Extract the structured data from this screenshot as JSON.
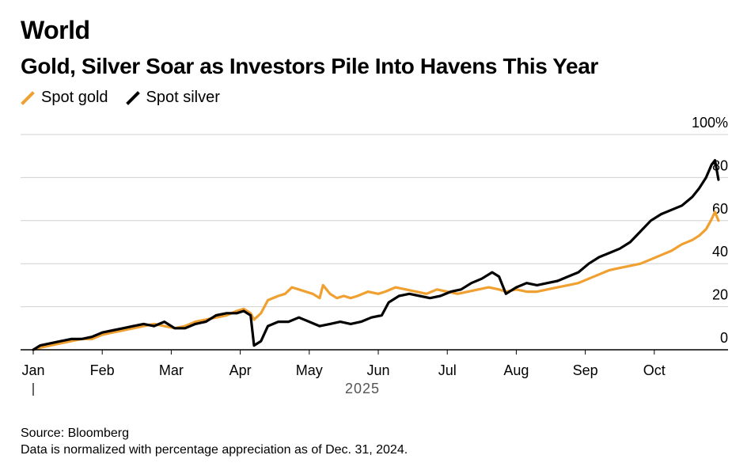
{
  "header": {
    "section": "World",
    "title": "Gold, Silver Soar as Investors Pile Into Havens This Year"
  },
  "legend": [
    {
      "name": "Spot gold",
      "color": "#f0a030"
    },
    {
      "name": "Spot silver",
      "color": "#000000"
    }
  ],
  "footer": {
    "source": "Source: Bloomberg",
    "note": "Data is normalized with percentage appreciation as of Dec. 31, 2024."
  },
  "chart_data": {
    "type": "line",
    "x_unit": "month_index_2025",
    "xlim": [
      0,
      9.6
    ],
    "ylim": [
      0,
      100
    ],
    "y_ticks": [
      0,
      20,
      40,
      60,
      80,
      100
    ],
    "y_tick_labels": [
      "0",
      "20",
      "40",
      "60",
      "80",
      "100%"
    ],
    "x_ticks": [
      0,
      1,
      2,
      3,
      4,
      5,
      6,
      7,
      8,
      9
    ],
    "x_tick_labels": [
      "Jan",
      "Feb",
      "Mar",
      "Apr",
      "May",
      "Jun",
      "Jul",
      "Aug",
      "Sep",
      "Oct"
    ],
    "year_label": "2025",
    "grid": true,
    "legend_position": "top-left",
    "series": [
      {
        "name": "Spot gold",
        "color": "#f0a030",
        "points": [
          [
            0.0,
            0
          ],
          [
            0.1,
            1
          ],
          [
            0.25,
            2
          ],
          [
            0.4,
            3
          ],
          [
            0.55,
            4
          ],
          [
            0.7,
            5
          ],
          [
            0.85,
            5
          ],
          [
            1.0,
            7
          ],
          [
            1.15,
            8
          ],
          [
            1.3,
            9
          ],
          [
            1.45,
            10
          ],
          [
            1.6,
            11
          ],
          [
            1.75,
            12
          ],
          [
            1.9,
            11
          ],
          [
            2.05,
            10
          ],
          [
            2.2,
            11
          ],
          [
            2.35,
            13
          ],
          [
            2.5,
            14
          ],
          [
            2.65,
            15
          ],
          [
            2.8,
            16
          ],
          [
            2.95,
            18
          ],
          [
            3.05,
            19
          ],
          [
            3.15,
            17
          ],
          [
            3.2,
            14
          ],
          [
            3.3,
            17
          ],
          [
            3.4,
            23
          ],
          [
            3.55,
            25
          ],
          [
            3.65,
            26
          ],
          [
            3.75,
            29
          ],
          [
            3.85,
            28
          ],
          [
            3.95,
            27
          ],
          [
            4.05,
            26
          ],
          [
            4.15,
            24
          ],
          [
            4.2,
            30
          ],
          [
            4.3,
            26
          ],
          [
            4.4,
            24
          ],
          [
            4.5,
            25
          ],
          [
            4.6,
            24
          ],
          [
            4.7,
            25
          ],
          [
            4.85,
            27
          ],
          [
            5.0,
            26
          ],
          [
            5.1,
            27
          ],
          [
            5.25,
            29
          ],
          [
            5.4,
            28
          ],
          [
            5.55,
            27
          ],
          [
            5.7,
            26
          ],
          [
            5.85,
            28
          ],
          [
            6.0,
            27
          ],
          [
            6.15,
            26
          ],
          [
            6.3,
            27
          ],
          [
            6.45,
            28
          ],
          [
            6.6,
            29
          ],
          [
            6.75,
            28
          ],
          [
            6.85,
            27
          ],
          [
            7.0,
            28
          ],
          [
            7.15,
            27
          ],
          [
            7.3,
            27
          ],
          [
            7.45,
            28
          ],
          [
            7.6,
            29
          ],
          [
            7.75,
            30
          ],
          [
            7.9,
            31
          ],
          [
            8.05,
            33
          ],
          [
            8.2,
            35
          ],
          [
            8.35,
            37
          ],
          [
            8.5,
            38
          ],
          [
            8.65,
            39
          ],
          [
            8.8,
            40
          ],
          [
            8.95,
            42
          ],
          [
            9.1,
            44
          ],
          [
            9.25,
            46
          ],
          [
            9.4,
            49
          ],
          [
            9.55,
            51
          ],
          [
            9.65,
            53
          ],
          [
            9.75,
            56
          ],
          [
            9.82,
            60
          ],
          [
            9.88,
            64
          ],
          [
            9.93,
            60
          ]
        ]
      },
      {
        "name": "Spot silver",
        "color": "#000000",
        "points": [
          [
            0.0,
            0
          ],
          [
            0.1,
            2
          ],
          [
            0.25,
            3
          ],
          [
            0.4,
            4
          ],
          [
            0.55,
            5
          ],
          [
            0.7,
            5
          ],
          [
            0.85,
            6
          ],
          [
            1.0,
            8
          ],
          [
            1.15,
            9
          ],
          [
            1.3,
            10
          ],
          [
            1.45,
            11
          ],
          [
            1.6,
            12
          ],
          [
            1.75,
            11
          ],
          [
            1.9,
            13
          ],
          [
            2.05,
            10
          ],
          [
            2.2,
            10
          ],
          [
            2.35,
            12
          ],
          [
            2.5,
            13
          ],
          [
            2.65,
            16
          ],
          [
            2.8,
            17
          ],
          [
            2.95,
            17
          ],
          [
            3.05,
            18
          ],
          [
            3.1,
            17
          ],
          [
            3.15,
            16
          ],
          [
            3.2,
            2
          ],
          [
            3.3,
            4
          ],
          [
            3.4,
            11
          ],
          [
            3.55,
            13
          ],
          [
            3.7,
            13
          ],
          [
            3.85,
            15
          ],
          [
            4.0,
            13
          ],
          [
            4.15,
            11
          ],
          [
            4.3,
            12
          ],
          [
            4.45,
            13
          ],
          [
            4.6,
            12
          ],
          [
            4.75,
            13
          ],
          [
            4.9,
            15
          ],
          [
            5.05,
            16
          ],
          [
            5.15,
            22
          ],
          [
            5.3,
            25
          ],
          [
            5.45,
            26
          ],
          [
            5.6,
            25
          ],
          [
            5.75,
            24
          ],
          [
            5.9,
            25
          ],
          [
            6.05,
            27
          ],
          [
            6.2,
            28
          ],
          [
            6.35,
            31
          ],
          [
            6.5,
            33
          ],
          [
            6.65,
            36
          ],
          [
            6.75,
            34
          ],
          [
            6.85,
            26
          ],
          [
            7.0,
            29
          ],
          [
            7.15,
            31
          ],
          [
            7.3,
            30
          ],
          [
            7.45,
            31
          ],
          [
            7.6,
            32
          ],
          [
            7.75,
            34
          ],
          [
            7.9,
            36
          ],
          [
            8.05,
            40
          ],
          [
            8.2,
            43
          ],
          [
            8.35,
            45
          ],
          [
            8.5,
            47
          ],
          [
            8.65,
            50
          ],
          [
            8.8,
            55
          ],
          [
            8.95,
            60
          ],
          [
            9.1,
            63
          ],
          [
            9.25,
            65
          ],
          [
            9.4,
            67
          ],
          [
            9.55,
            71
          ],
          [
            9.65,
            75
          ],
          [
            9.75,
            80
          ],
          [
            9.83,
            86
          ],
          [
            9.88,
            88
          ],
          [
            9.93,
            79
          ]
        ]
      }
    ]
  }
}
